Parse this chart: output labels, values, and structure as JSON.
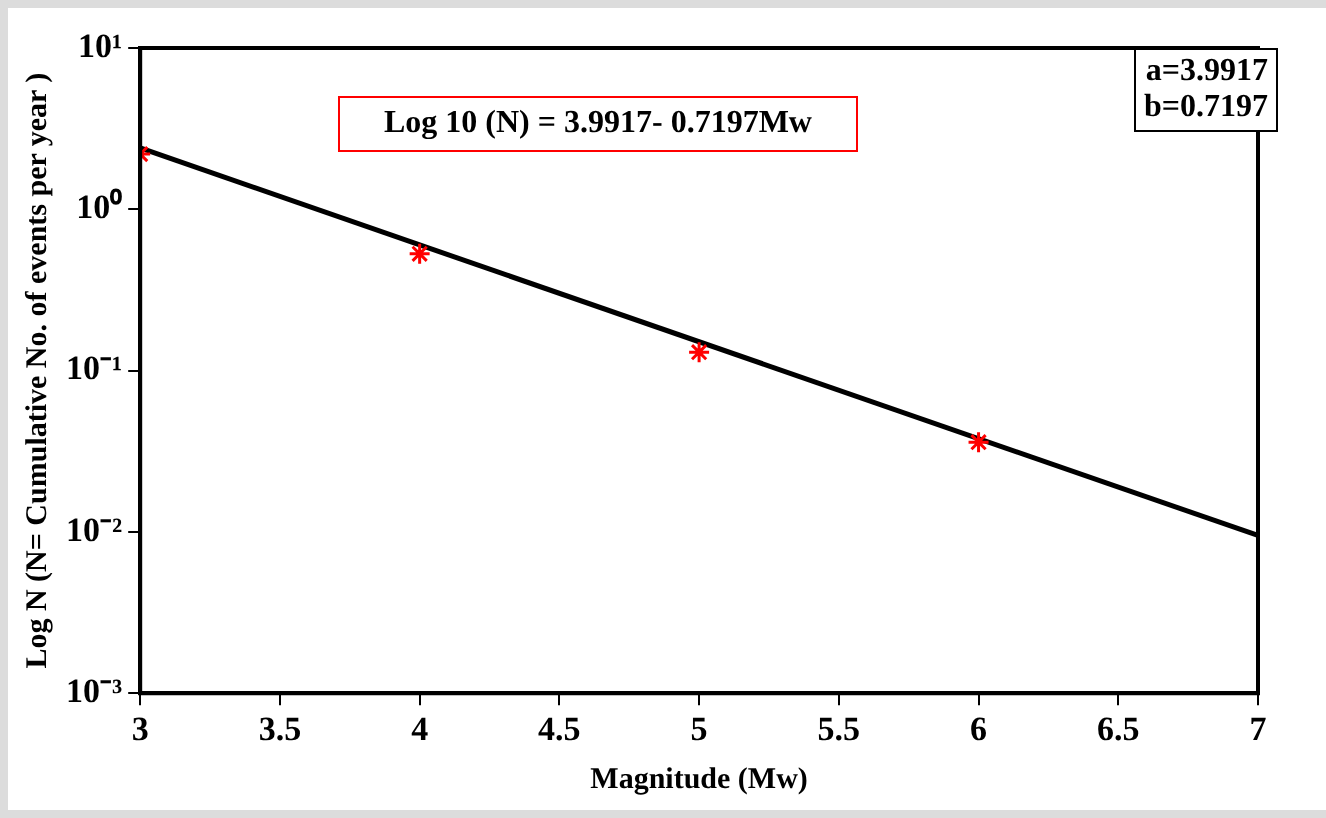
{
  "chart_data": {
    "type": "scatter",
    "xlabel": "Magnitude (Mw)",
    "ylabel": "Log N (N= Cumulative No. of events per year )",
    "annotations": [
      "Log 10 (N) = 3.9917- 0.7197Mw",
      "a=3.9917\nb=0.7197"
    ],
    "log": "y",
    "grid": false,
    "legend": false,
    "xlim": [
      3,
      7
    ],
    "xticks": [
      3,
      3.5,
      4,
      4.5,
      5,
      5.5,
      6,
      6.5,
      7
    ],
    "ylim": [
      0.001,
      10
    ],
    "yticks": [
      {
        "value": 0.001,
        "label": "10⁻³"
      },
      {
        "value": 0.01,
        "label": "10⁻²"
      },
      {
        "value": 0.1,
        "label": "10⁻¹"
      },
      {
        "value": 1,
        "label": "10⁰"
      },
      {
        "value": 10,
        "label": "10¹"
      }
    ],
    "series": [
      {
        "type": "scatter",
        "color": "#ff0000",
        "marker": "cross",
        "x": [
          3,
          4,
          5,
          6
        ],
        "values": [
          2.2,
          0.53,
          0.13,
          0.036
        ]
      },
      {
        "type": "line",
        "color": "#000000",
        "marker": "none",
        "line_style": "solid",
        "x": [
          3,
          7
        ],
        "values": [
          2.4,
          0.0095
        ]
      }
    ]
  }
}
